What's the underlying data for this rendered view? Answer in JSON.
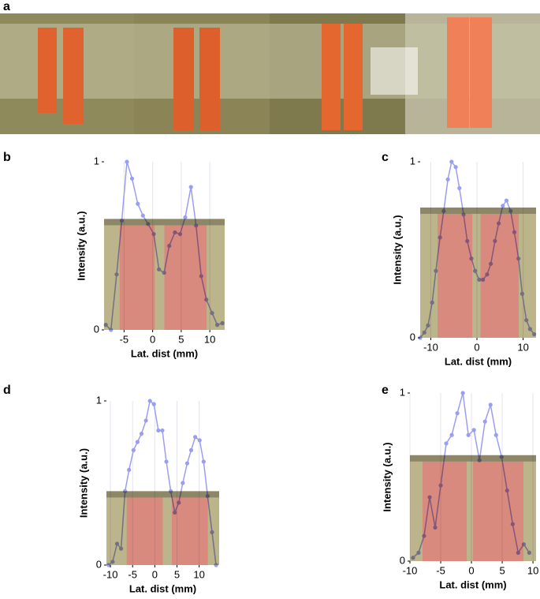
{
  "panel_a": {
    "label": "a"
  },
  "chart_data": [
    {
      "type": "line",
      "panel_label": "b",
      "xlabel": "Lat. dist (mm)",
      "ylabel": "Intensity (a.u.)",
      "color": "#9a9ef0",
      "x": [
        -8.2,
        -7.3,
        -6.3,
        -5.4,
        -4.5,
        -3.6,
        -2.6,
        -1.7,
        -0.8,
        0.2,
        1.1,
        2.0,
        2.9,
        3.9,
        4.8,
        5.7,
        6.7,
        7.6,
        8.5,
        9.4,
        10.4,
        11.3,
        12.2
      ],
      "values": [
        0.03,
        0.0,
        0.33,
        0.65,
        1.0,
        0.9,
        0.75,
        0.68,
        0.63,
        0.57,
        0.36,
        0.34,
        0.5,
        0.58,
        0.57,
        0.67,
        0.85,
        0.62,
        0.32,
        0.18,
        0.1,
        0.03,
        0.04
      ],
      "xlim": [
        -8.5,
        12.6
      ],
      "ylim": [
        0,
        1
      ],
      "xticks": [
        -5,
        0,
        5,
        10
      ],
      "yticks": [
        0,
        1
      ],
      "grid": true
    },
    {
      "type": "line",
      "panel_label": "c",
      "xlabel": "Lat. dist (mm)",
      "ylabel": "Intensity (a.u.)",
      "color": "#9a9ef0",
      "x": [
        -12.3,
        -11.4,
        -10.6,
        -9.7,
        -8.9,
        -8.0,
        -7.2,
        -6.3,
        -5.5,
        -4.6,
        -3.8,
        -2.9,
        -2.1,
        -1.2,
        -0.4,
        0.5,
        1.3,
        2.2,
        3.0,
        3.9,
        4.7,
        5.6,
        6.4,
        7.3,
        8.1,
        9.0,
        9.8,
        10.7,
        11.5,
        12.4
      ],
      "values": [
        0.0,
        0.03,
        0.07,
        0.2,
        0.38,
        0.57,
        0.72,
        0.9,
        1.0,
        0.97,
        0.85,
        0.7,
        0.55,
        0.45,
        0.38,
        0.33,
        0.33,
        0.36,
        0.42,
        0.55,
        0.65,
        0.75,
        0.78,
        0.72,
        0.6,
        0.45,
        0.25,
        0.1,
        0.05,
        0.02
      ],
      "xlim": [
        -12.3,
        12.8
      ],
      "ylim": [
        0,
        1
      ],
      "xticks": [
        -10,
        0,
        10
      ],
      "yticks": [
        0,
        1
      ],
      "grid": true
    },
    {
      "type": "line",
      "panel_label": "d",
      "xlabel": "Lat. dist (mm)",
      "ylabel": "Intensity (a.u.)",
      "color": "#9a9ef0",
      "x": [
        -10.4,
        -9.5,
        -8.5,
        -7.6,
        -6.7,
        -5.8,
        -4.8,
        -3.9,
        -3.0,
        -2.0,
        -1.1,
        -0.2,
        0.8,
        1.7,
        2.6,
        3.6,
        4.5,
        5.4,
        6.3,
        7.3,
        8.2,
        9.1,
        10.1,
        11.0,
        11.9,
        12.9,
        13.8
      ],
      "values": [
        0.0,
        0.02,
        0.13,
        0.1,
        0.45,
        0.58,
        0.7,
        0.75,
        0.8,
        0.88,
        1.0,
        0.98,
        0.82,
        0.82,
        0.63,
        0.45,
        0.32,
        0.38,
        0.5,
        0.62,
        0.7,
        0.78,
        0.76,
        0.63,
        0.42,
        0.2,
        0.0
      ],
      "xlim": [
        -10.9,
        14.5
      ],
      "ylim": [
        0,
        1
      ],
      "xticks": [
        -10,
        -5,
        0,
        5,
        10
      ],
      "yticks": [
        0,
        1
      ],
      "grid": true
    },
    {
      "type": "line",
      "panel_label": "e",
      "xlabel": "Lat. dist (mm)",
      "ylabel": "Intensity (a.u.)",
      "color": "#9a9ef0",
      "x": [
        -9.5,
        -8.6,
        -7.7,
        -6.8,
        -5.9,
        -5.0,
        -4.1,
        -3.2,
        -2.3,
        -1.4,
        -0.5,
        0.4,
        1.3,
        2.2,
        3.1,
        4.0,
        4.9,
        5.8,
        6.7,
        7.6,
        8.5,
        9.4
      ],
      "values": [
        0.02,
        0.05,
        0.15,
        0.38,
        0.2,
        0.45,
        0.7,
        0.75,
        0.88,
        1.0,
        0.75,
        0.78,
        0.6,
        0.83,
        0.93,
        0.75,
        0.62,
        0.42,
        0.22,
        0.05,
        0.1,
        0.05
      ],
      "xlim": [
        -10,
        10.5
      ],
      "ylim": [
        0,
        1
      ],
      "xticks": [
        -10,
        -5,
        0,
        5,
        10
      ],
      "yticks": [
        0,
        1
      ],
      "grid": true
    }
  ]
}
